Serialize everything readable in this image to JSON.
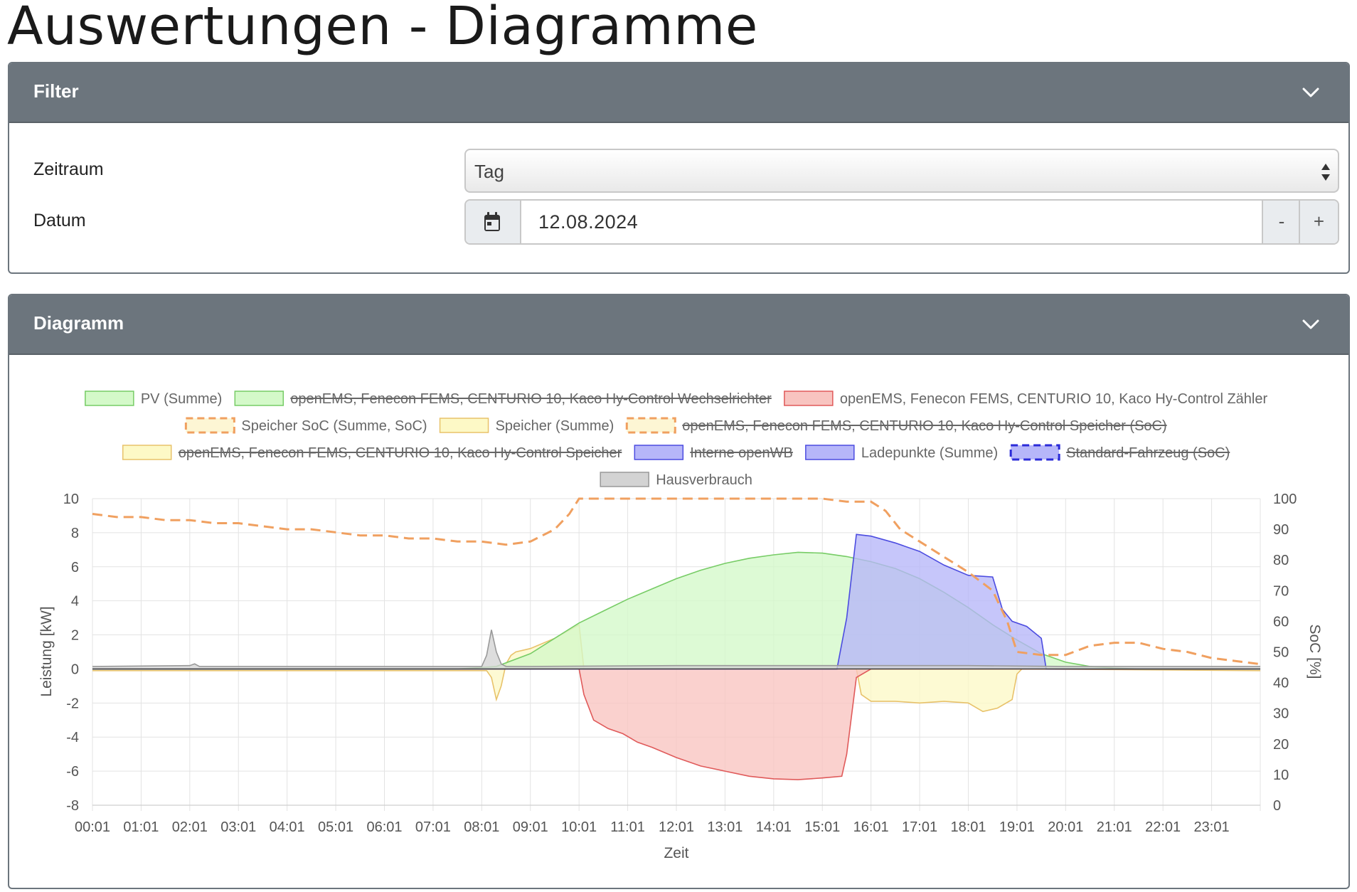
{
  "page": {
    "title": "Auswertungen - Diagramme"
  },
  "filter": {
    "header": "Filter",
    "zeitraum_label": "Zeitraum",
    "zeitraum_value": "Tag",
    "datum_label": "Datum",
    "datum_value": "12.08.2024",
    "minus_label": "-",
    "plus_label": "+"
  },
  "diagram": {
    "header": "Diagramm"
  },
  "colors": {
    "header_bg": "#6c757d",
    "pv": "#6fcf6f",
    "meter": "#e05a5a",
    "soc": "#f0a060",
    "battery": "#e8c26a",
    "ev": "#4c4ce0",
    "house": "#999999"
  },
  "chart_data": {
    "type": "area",
    "xlabel": "Zeit",
    "ylabel_left": "Leistung [kW]",
    "ylabel_right": "SoC [%]",
    "ylim_left": [
      -8,
      10
    ],
    "ylim_right": [
      0,
      100
    ],
    "yticks_left": [
      "10",
      "8",
      "6",
      "4",
      "2",
      "0",
      "-2",
      "-4",
      "-6",
      "-8"
    ],
    "yticks_right": [
      "100",
      "90",
      "80",
      "70",
      "60",
      "50",
      "40",
      "30",
      "20",
      "10",
      "0"
    ],
    "xticks": [
      "00:01",
      "01:01",
      "02:01",
      "03:01",
      "04:01",
      "05:01",
      "06:01",
      "07:01",
      "08:01",
      "09:01",
      "10:01",
      "11:01",
      "12:01",
      "13:01",
      "14:01",
      "15:01",
      "16:01",
      "17:01",
      "18:01",
      "19:01",
      "20:01",
      "21:01",
      "22:01",
      "23:01"
    ],
    "grid": true,
    "legend_position": "top",
    "legend": [
      {
        "label": "PV (Summe)",
        "fill": "#d4f9c9",
        "stroke": "#77cc66",
        "dashed": false,
        "hidden": false
      },
      {
        "label": "openEMS, Fenecon FEMS, CENTURIO 10, Kaco Hy-Control Wechselrichter",
        "fill": "#d4f9c9",
        "stroke": "#77cc66",
        "dashed": false,
        "hidden": true
      },
      {
        "label": "openEMS, Fenecon FEMS, CENTURIO 10, Kaco Hy-Control Zähler",
        "fill": "#f8c4c0",
        "stroke": "#e05a5a",
        "dashed": false,
        "hidden": false
      },
      {
        "label": "Speicher SoC (Summe, SoC)",
        "fill": "#fdf6d4",
        "stroke": "#f0a060",
        "dashed": true,
        "hidden": false
      },
      {
        "label": "Speicher (Summe)",
        "fill": "#fdf9c6",
        "stroke": "#e8c26a",
        "dashed": false,
        "hidden": false
      },
      {
        "label": "openEMS, Fenecon FEMS, CENTURIO 10, Kaco Hy-Control Speicher (SoC)",
        "fill": "#fdf6d4",
        "stroke": "#f0a060",
        "dashed": true,
        "hidden": true
      },
      {
        "label": "openEMS, Fenecon FEMS, CENTURIO 10, Kaco Hy-Control Speicher",
        "fill": "#fdf9c6",
        "stroke": "#e8c26a",
        "dashed": false,
        "hidden": true
      },
      {
        "label": "Interne openWB",
        "fill": "#b6b6f9",
        "stroke": "#4c4ce0",
        "dashed": false,
        "hidden": true
      },
      {
        "label": "Ladepunkte (Summe)",
        "fill": "#b6b6f9",
        "stroke": "#4c4ce0",
        "dashed": false,
        "hidden": false
      },
      {
        "label": "Standard-Fahrzeug (SoC)",
        "fill": "#b6b6f9",
        "stroke": "#2a2ad8",
        "dashed": true,
        "hidden": true
      },
      {
        "label": "Hausverbrauch",
        "fill": "#d3d3d3",
        "stroke": "#999999",
        "dashed": false,
        "hidden": false
      }
    ],
    "series": [
      {
        "name": "PV (Summe)",
        "axis": "left",
        "x": [
          0,
          7.5,
          8.3,
          9,
          9.5,
          10,
          10.5,
          11,
          11.5,
          12,
          12.5,
          13,
          13.5,
          14,
          14.5,
          15,
          15.5,
          16,
          16.5,
          17,
          17.5,
          18,
          18.5,
          19,
          19.5,
          20,
          20.5,
          21,
          21.5,
          22,
          23,
          24
        ],
        "y": [
          0,
          0,
          0.15,
          0.9,
          1.8,
          2.7,
          3.4,
          4.1,
          4.7,
          5.3,
          5.8,
          6.2,
          6.5,
          6.7,
          6.85,
          6.8,
          6.6,
          6.3,
          5.9,
          5.3,
          4.5,
          3.6,
          2.6,
          1.7,
          0.9,
          0.4,
          0.15,
          0.05,
          0,
          0,
          0,
          0
        ]
      },
      {
        "name": "openEMS, Fenecon FEMS, CENTURIO 10, Kaco Hy-Control Zähler",
        "axis": "left",
        "x": [
          0,
          10,
          10.1,
          10.3,
          10.6,
          10.9,
          11.2,
          11.5,
          12,
          12.5,
          13,
          13.5,
          14,
          14.5,
          15,
          15.4,
          15.5,
          15.7,
          16,
          24
        ],
        "y": [
          0,
          0,
          -1.5,
          -3.0,
          -3.5,
          -3.8,
          -4.3,
          -4.6,
          -5.2,
          -5.7,
          -6.0,
          -6.3,
          -6.45,
          -6.5,
          -6.4,
          -6.3,
          -5.0,
          -0.5,
          0,
          0
        ]
      },
      {
        "name": "Speicher (Summe)",
        "axis": "left",
        "x": [
          0,
          8.1,
          8.2,
          8.3,
          8.4,
          8.5,
          8.6,
          8.7,
          9,
          9.5,
          10,
          10.1,
          15.7,
          15.8,
          16,
          16.5,
          17,
          17.5,
          18,
          18.3,
          18.6,
          18.9,
          19,
          19.1,
          24
        ],
        "y": [
          -0.1,
          -0.1,
          -0.5,
          -1.8,
          -1.0,
          0.3,
          0.8,
          1.0,
          1.2,
          1.8,
          2.6,
          0,
          0,
          -1.5,
          -1.9,
          -1.9,
          -2.0,
          -1.9,
          -2.0,
          -2.5,
          -2.3,
          -1.8,
          -0.3,
          0,
          -0.1
        ]
      },
      {
        "name": "Ladepunkte (Summe)",
        "axis": "left",
        "x": [
          0,
          15.3,
          15.5,
          15.7,
          16,
          16.5,
          17,
          17.5,
          18,
          18.5,
          18.7,
          18.9,
          19.2,
          19.5,
          19.6,
          24
        ],
        "y": [
          0,
          0,
          3.0,
          7.9,
          7.8,
          7.4,
          6.9,
          6.1,
          5.5,
          5.4,
          3.5,
          2.8,
          2.5,
          1.8,
          0,
          0
        ]
      },
      {
        "name": "Hausverbrauch",
        "axis": "left",
        "x": [
          0,
          2,
          2.1,
          2.2,
          8.0,
          8.1,
          8.2,
          8.3,
          8.4,
          8.5,
          9,
          12,
          16,
          18,
          20,
          24
        ],
        "y": [
          0.15,
          0.2,
          0.3,
          0.15,
          0.15,
          0.8,
          2.3,
          1.0,
          0.3,
          0.15,
          0.15,
          0.2,
          0.2,
          0.2,
          0.15,
          0.15
        ]
      },
      {
        "name": "Speicher SoC (Summe, SoC)",
        "axis": "right",
        "x": [
          0,
          0.5,
          1,
          1.5,
          2,
          2.5,
          3,
          3.5,
          4,
          4.5,
          5,
          5.5,
          6,
          6.5,
          7,
          7.5,
          8,
          8.5,
          9,
          9.5,
          9.8,
          10,
          10.5,
          11,
          12,
          13,
          14,
          15,
          15.5,
          16,
          16.3,
          16.6,
          17,
          17.5,
          18,
          18.5,
          18.8,
          19,
          19.5,
          20,
          20.5,
          21,
          21.5,
          22,
          22.5,
          23,
          23.5,
          24
        ],
        "y": [
          95,
          94,
          94,
          93,
          93,
          92,
          92,
          91,
          90,
          90,
          89,
          88,
          88,
          87,
          87,
          86,
          86,
          85,
          86,
          90,
          95,
          100,
          100,
          100,
          100,
          100,
          100,
          100,
          99,
          99,
          96,
          90,
          86,
          81,
          76,
          70,
          60,
          50,
          49,
          49,
          52,
          53,
          53,
          51,
          50,
          48,
          47,
          46
        ]
      }
    ]
  }
}
